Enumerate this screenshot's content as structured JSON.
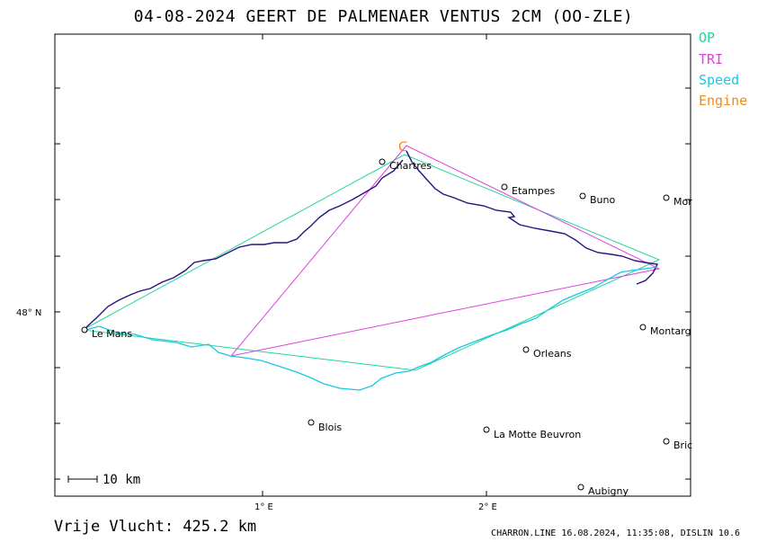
{
  "title": "04-08-2024   GEERT DE PALMENAER   VENTUS 2CM (OO-ZLE)",
  "legend": [
    {
      "label": "OP",
      "color": "#22d69a"
    },
    {
      "label": "TRI",
      "color": "#e040e0"
    },
    {
      "label": "Speed",
      "color": "#18c8e6"
    },
    {
      "label": "Engine",
      "color": "#f08a1c"
    }
  ],
  "axes": {
    "y_label": "48° N",
    "x_labels": [
      "1° E",
      "2° E"
    ]
  },
  "scale_label": "10 km",
  "cities": [
    {
      "name": "Chartres"
    },
    {
      "name": "Etampes"
    },
    {
      "name": "Buno"
    },
    {
      "name": "Mor"
    },
    {
      "name": "Le Mans"
    },
    {
      "name": "Montarg"
    },
    {
      "name": "Orleans"
    },
    {
      "name": "Blois"
    },
    {
      "name": "La Motte Beuvron"
    },
    {
      "name": "Bric"
    },
    {
      "name": "Aubigny"
    }
  ],
  "footer": {
    "distance": "Vrije Vlucht:  425.2 km",
    "note": "CHARRON.LINE 16.08.2024, 11:35:08, DISLIN 10.6"
  }
}
